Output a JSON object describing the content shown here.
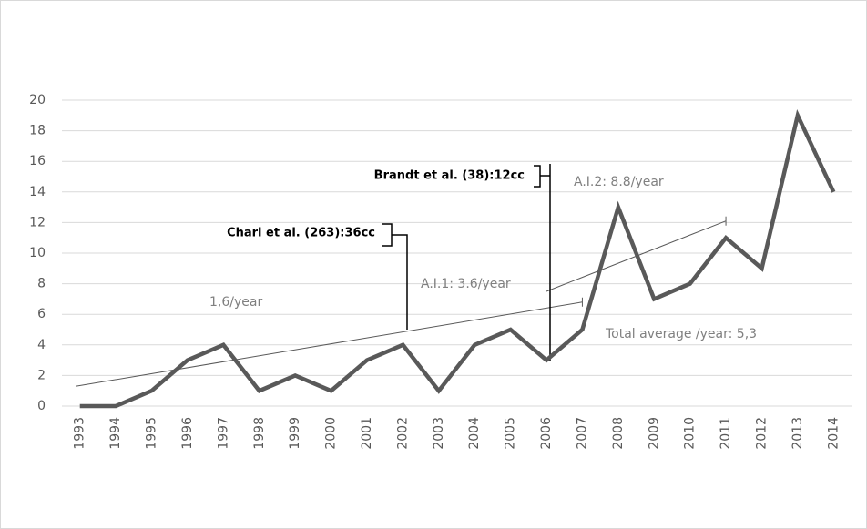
{
  "chart_data": {
    "type": "line",
    "categories": [
      "1993",
      "1994",
      "1995",
      "1996",
      "1997",
      "1998",
      "1999",
      "2000",
      "2001",
      "2002",
      "2003",
      "2004",
      "2005",
      "2006",
      "2007",
      "2008",
      "2009",
      "2010",
      "2011",
      "2012",
      "2013",
      "2014"
    ],
    "series": [
      {
        "color": "#595959",
        "values": [
          0,
          0,
          1,
          3,
          4,
          1,
          2,
          1,
          3,
          4,
          1,
          4,
          5,
          3,
          5,
          13,
          7,
          8,
          11,
          9,
          19,
          14
        ]
      }
    ],
    "ylim": [
      0,
      20
    ],
    "yticks": [
      0,
      2,
      4,
      6,
      8,
      10,
      12,
      14,
      16,
      18,
      20
    ],
    "grid": true,
    "trendlines": [
      {
        "from": "1993",
        "to": "2007",
        "values": [
          1.3,
          6.8
        ]
      },
      {
        "from": "2006",
        "to": "2011",
        "values": [
          7.5,
          12.1
        ]
      }
    ],
    "annotations": [
      "Brandt et al. (38):12cc",
      "Chari et al. (263):36cc",
      "A.I.2: 8.8/year",
      "A.I.1: 3.6/year",
      "1,6/year",
      "Total average /year: 5,3"
    ]
  }
}
